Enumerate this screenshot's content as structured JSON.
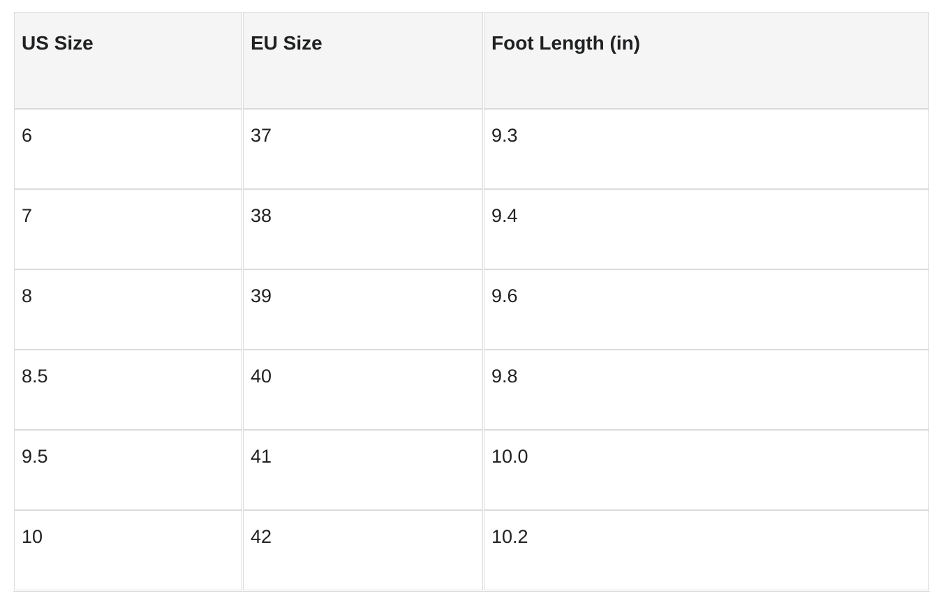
{
  "colors": {
    "page_bg": "#ffffff",
    "header_bg": "#f5f5f5",
    "border": "#dbdbdb",
    "text": "#202122"
  },
  "chart_data": {
    "type": "table",
    "title": "",
    "columns": [
      "US Size",
      "EU Size",
      "Foot Length (in)"
    ],
    "rows": [
      [
        "6",
        "37",
        "9.3"
      ],
      [
        "7",
        "38",
        "9.4"
      ],
      [
        "8",
        "39",
        "9.6"
      ],
      [
        "8.5",
        "40",
        "9.8"
      ],
      [
        "9.5",
        "41",
        "10.0"
      ],
      [
        "10",
        "42",
        "10.2"
      ]
    ]
  }
}
